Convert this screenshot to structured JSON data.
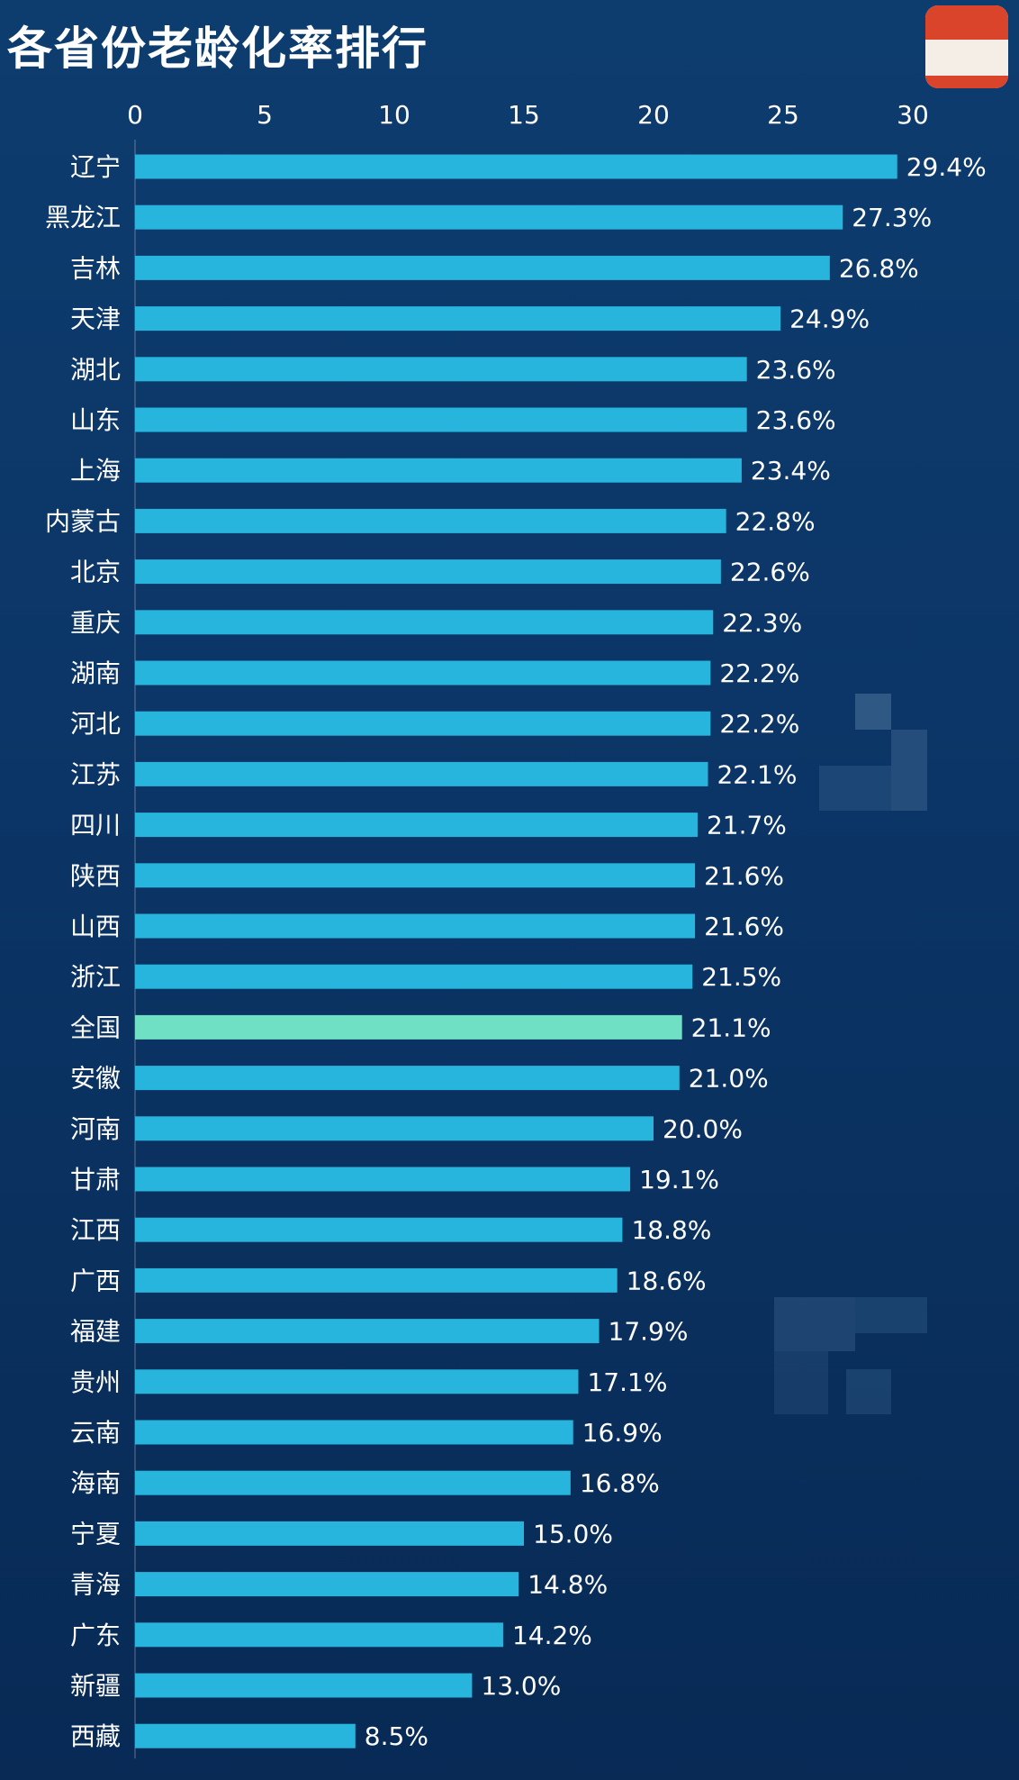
{
  "title": "各省份老龄化率排行",
  "colors": {
    "bar": "#27b4dd",
    "bar_highlight": "#6fe0c3",
    "axis_text": "#ffffff",
    "label_text": "#ffffff"
  },
  "chart_data": {
    "type": "bar",
    "orientation": "horizontal",
    "title": "各省份老龄化率排行",
    "xlim": [
      0,
      30
    ],
    "xticks": [
      0,
      5,
      10,
      15,
      20,
      25,
      30
    ],
    "value_suffix": "%",
    "highlight_category": "全国",
    "categories": [
      "辽宁",
      "黑龙江",
      "吉林",
      "天津",
      "湖北",
      "山东",
      "上海",
      "内蒙古",
      "北京",
      "重庆",
      "湖南",
      "河北",
      "江苏",
      "四川",
      "陕西",
      "山西",
      "浙江",
      "全国",
      "安徽",
      "河南",
      "甘肃",
      "江西",
      "广西",
      "福建",
      "贵州",
      "云南",
      "海南",
      "宁夏",
      "青海",
      "广东",
      "新疆",
      "西藏"
    ],
    "values": [
      29.4,
      27.3,
      26.8,
      24.9,
      23.6,
      23.6,
      23.4,
      22.8,
      22.6,
      22.3,
      22.2,
      22.2,
      22.1,
      21.7,
      21.6,
      21.6,
      21.5,
      21.1,
      21.0,
      20.0,
      19.1,
      18.8,
      18.6,
      17.9,
      17.1,
      16.9,
      16.8,
      15.0,
      14.8,
      14.2,
      13.0,
      8.5
    ],
    "value_labels": [
      "29.4%",
      "27.3%",
      "26.8%",
      "24.9%",
      "23.6%",
      "23.6%",
      "23.4%",
      "22.8%",
      "22.6%",
      "22.3%",
      "22.2%",
      "22.2%",
      "22.1%",
      "21.7%",
      "21.6%",
      "21.6%",
      "21.5%",
      "21.1%",
      "21.0%",
      "20.0%",
      "19.1%",
      "18.8%",
      "18.6%",
      "17.9%",
      "17.1%",
      "16.9%",
      "16.8%",
      "15.0%",
      "14.8%",
      "14.2%",
      "13.0%",
      "8.5%"
    ]
  }
}
